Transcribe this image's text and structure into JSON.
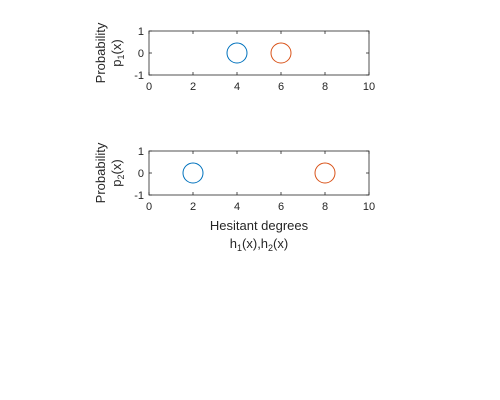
{
  "chart_data": [
    {
      "type": "scatter",
      "ylabel": "Probability",
      "ylabel_line2": {
        "base": "p",
        "sub": "1",
        "rest": "(x)"
      },
      "xlim": [
        0,
        10
      ],
      "ylim": [
        -1,
        1
      ],
      "xticks": [
        "0",
        "2",
        "4",
        "6",
        "8",
        "10"
      ],
      "yticks": [
        "1",
        "0",
        "-1"
      ],
      "grid": false,
      "marker": "circle",
      "series": [
        {
          "x": [
            4
          ],
          "y": [
            0
          ],
          "color": "#0072BD"
        },
        {
          "x": [
            6
          ],
          "y": [
            0
          ],
          "color": "#D95319"
        }
      ]
    },
    {
      "type": "scatter",
      "ylabel": "Probability",
      "ylabel_line2": {
        "base": "p",
        "sub": "2",
        "rest": "(x)"
      },
      "xlabel": "Hesitant degrees",
      "xlabel_line2": {
        "p1": "h",
        "s1": "1",
        "p2": "(x),h",
        "s2": "2",
        "p3": "(x)"
      },
      "xlim": [
        0,
        10
      ],
      "ylim": [
        -1,
        1
      ],
      "xticks": [
        "0",
        "2",
        "4",
        "6",
        "8",
        "10"
      ],
      "yticks": [
        "1",
        "0",
        "-1"
      ],
      "grid": false,
      "marker": "circle",
      "series": [
        {
          "x": [
            2
          ],
          "y": [
            0
          ],
          "color": "#0072BD"
        },
        {
          "x": [
            8
          ],
          "y": [
            0
          ],
          "color": "#D95319"
        }
      ]
    }
  ]
}
